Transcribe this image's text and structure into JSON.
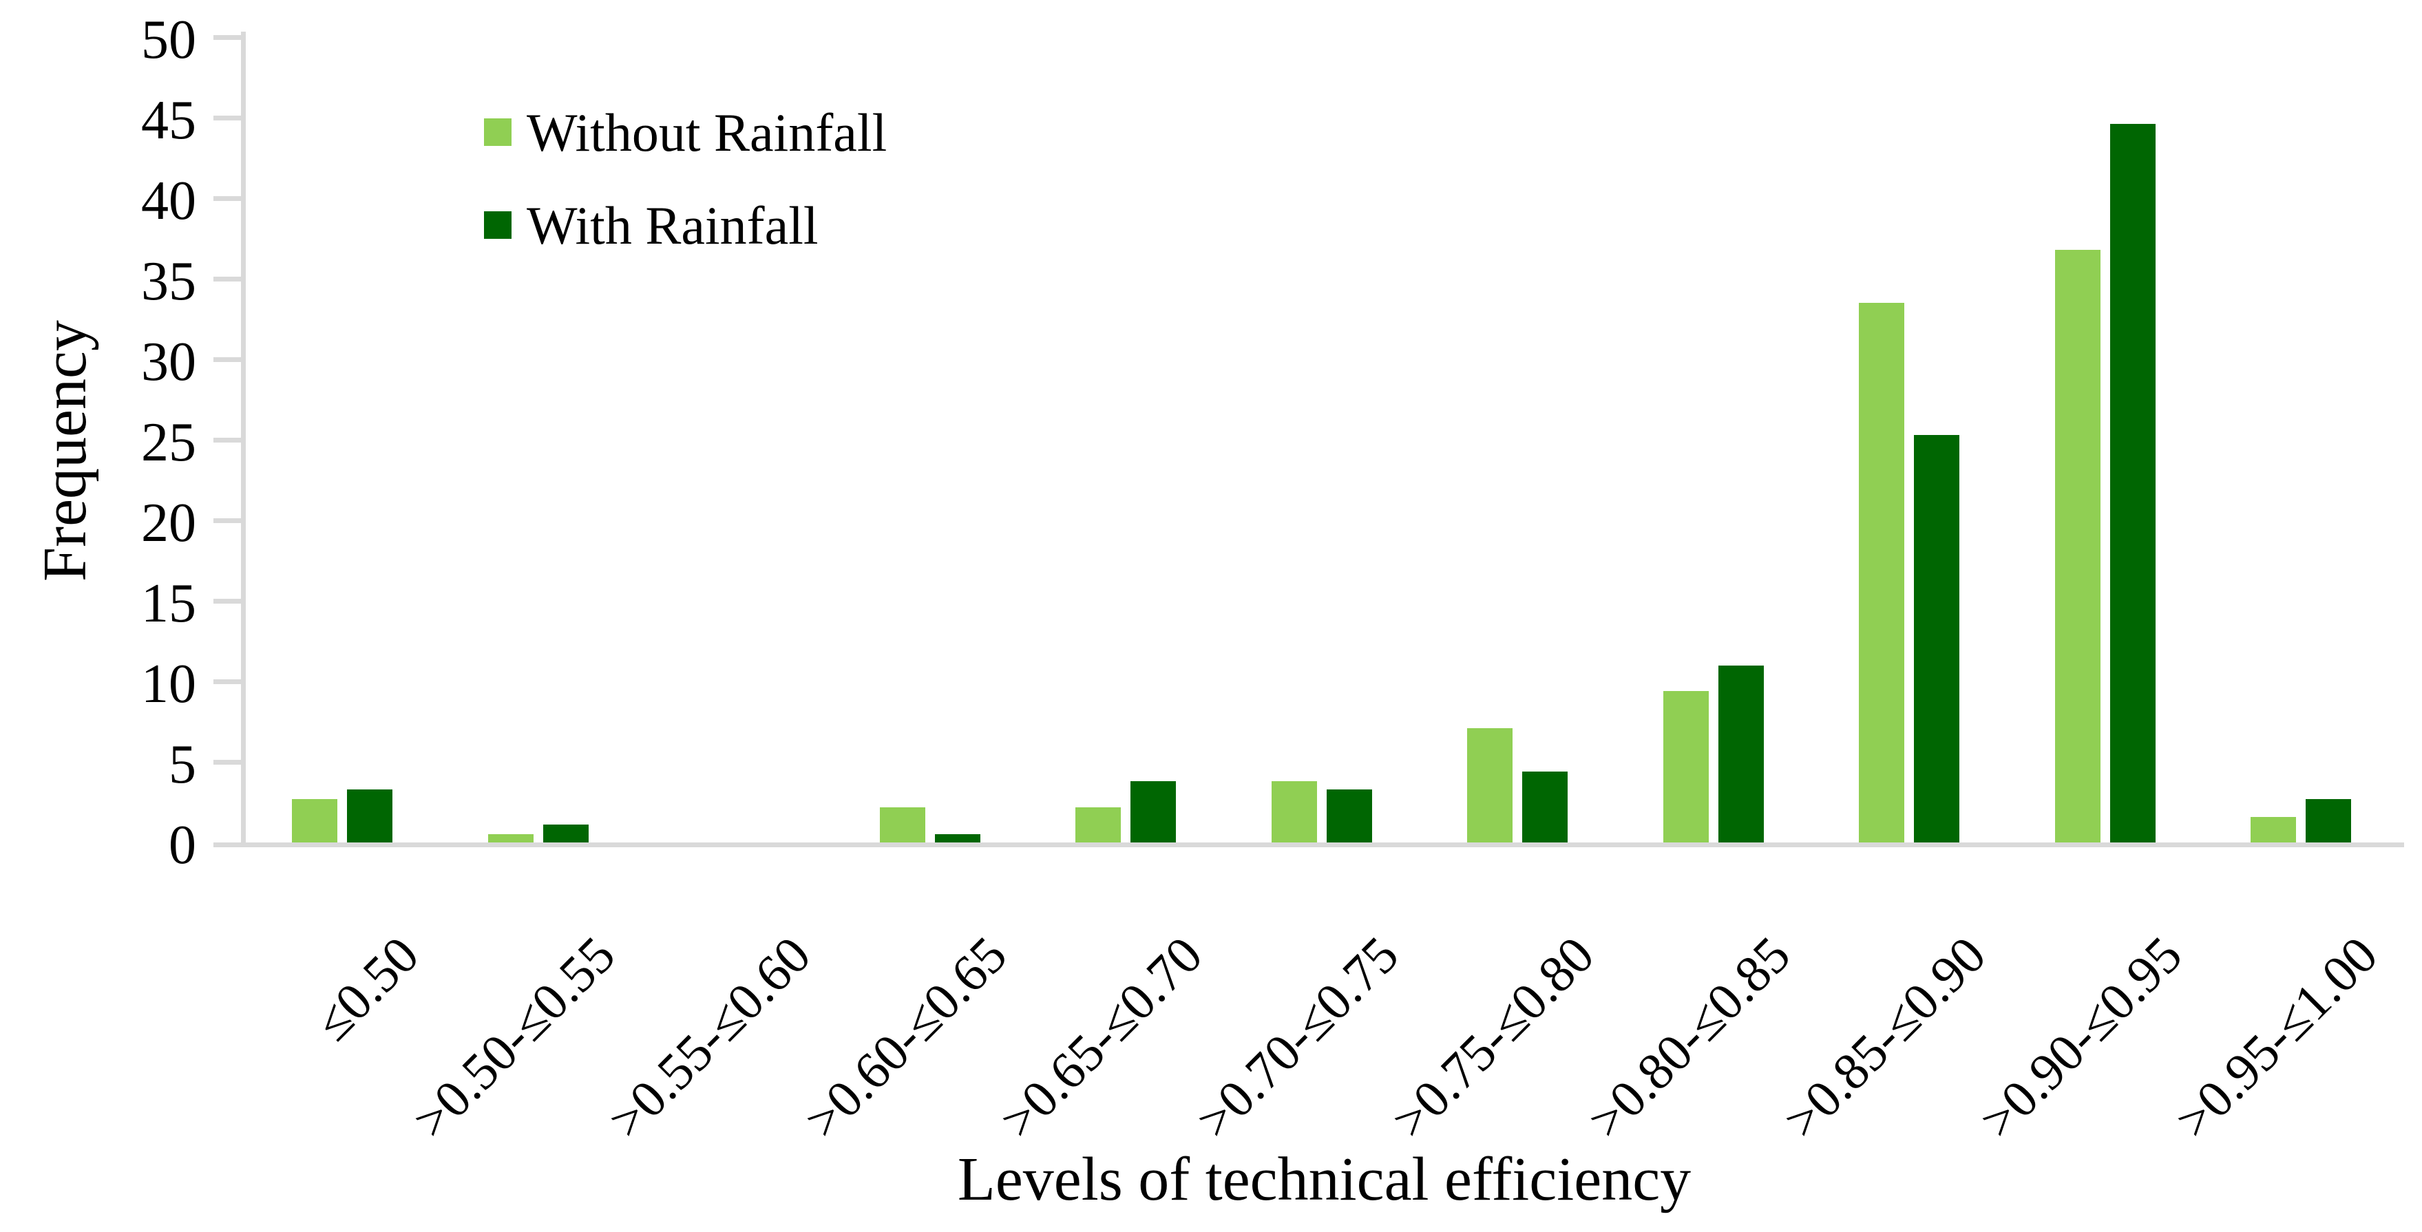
{
  "chart_data": {
    "type": "bar",
    "title": "",
    "xlabel": "Levels of technical efficiency",
    "ylabel": "Frequency",
    "categories": [
      "≤0.50",
      ">0.50-≤0.55",
      ">0.55-≤0.60",
      ">0.60-≤0.65",
      ">0.65-≤0.70",
      ">0.70-≤0.75",
      ">0.75-≤0.80",
      ">0.80-≤0.85",
      ">0.85-≤0.90",
      ">0.90-≤0.95",
      ">0.95-≤1.00"
    ],
    "series": [
      {
        "name": "Without Rainfall",
        "color": "#90CF53",
        "values": [
          2.7,
          0.5,
          0,
          2.2,
          2.2,
          3.8,
          7.1,
          9.4,
          33.5,
          36.8,
          1.6
        ]
      },
      {
        "name": "With Rainfall",
        "color": "#006602",
        "values": [
          3.3,
          1.1,
          0,
          0.5,
          3.8,
          3.3,
          4.4,
          11.0,
          25.3,
          44.6,
          2.7
        ]
      }
    ],
    "ylim": [
      0,
      50
    ],
    "ytick_step": 5,
    "yticks": [
      "0",
      "5",
      "10",
      "15",
      "20",
      "25",
      "30",
      "35",
      "40",
      "45",
      "50"
    ],
    "grid": "off",
    "legend_position": "inside-top-left",
    "axis_color": "#D9D9D9",
    "text_color": "#000000"
  }
}
